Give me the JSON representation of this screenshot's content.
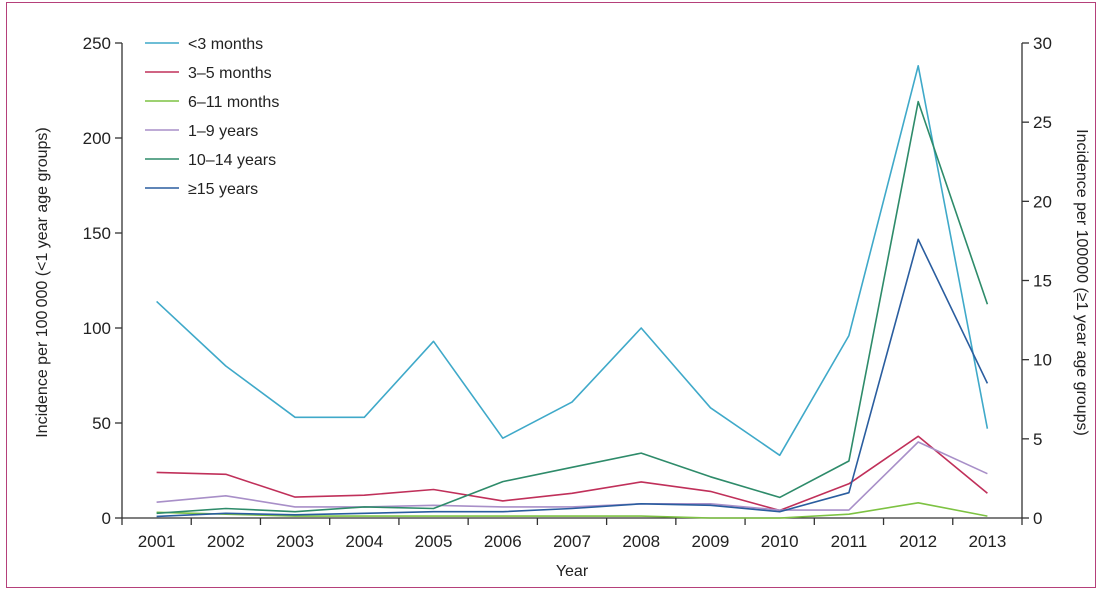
{
  "chart_data": {
    "type": "line",
    "title": "",
    "xlabel": "Year",
    "ylabel_left": "Incidence per 100 000 (<1 year age groups)",
    "ylabel_right": "Incidence per 100000 (≥1 year age groups)",
    "x": [
      "2001",
      "2002",
      "2003",
      "2004",
      "2005",
      "2006",
      "2007",
      "2008",
      "2009",
      "2010",
      "2011",
      "2012",
      "2013"
    ],
    "ylim_left": [
      0,
      250
    ],
    "ylim_right": [
      0,
      30
    ],
    "yticks_left": [
      "0",
      "50",
      "100",
      "150",
      "200",
      "250"
    ],
    "yticks_right": [
      "0",
      "5",
      "10",
      "15",
      "20",
      "25",
      "30"
    ],
    "grid": false,
    "legend_position": "top-left",
    "series": [
      {
        "name": "<3 months",
        "axis": "left",
        "color": "#3fa9c9",
        "values": [
          114,
          80,
          53,
          53,
          93,
          42,
          61,
          100,
          58,
          33,
          96,
          238,
          47
        ]
      },
      {
        "name": "3–5 months",
        "axis": "left",
        "color": "#c0305a",
        "values": [
          24,
          23,
          11,
          12,
          15,
          9,
          13,
          19,
          14,
          4,
          18,
          43,
          13
        ]
      },
      {
        "name": "6–11 months",
        "axis": "left",
        "color": "#7dc242",
        "values": [
          3,
          2,
          1,
          1,
          1,
          1,
          1,
          1,
          0,
          0,
          2,
          8,
          1
        ]
      },
      {
        "name": "1–9 years",
        "axis": "right",
        "color": "#a88fc8",
        "values": [
          1.0,
          1.4,
          0.7,
          0.7,
          0.8,
          0.7,
          0.7,
          0.9,
          0.9,
          0.5,
          0.5,
          4.8,
          2.8
        ]
      },
      {
        "name": "10–14 years",
        "axis": "right",
        "color": "#2e8b6a",
        "values": [
          0.3,
          0.6,
          0.4,
          0.7,
          0.6,
          2.3,
          3.2,
          4.1,
          2.6,
          1.3,
          3.6,
          26.3,
          13.5
        ]
      },
      {
        "name": "≥15 years",
        "axis": "right",
        "color": "#2a5d9f",
        "values": [
          0.1,
          0.3,
          0.2,
          0.3,
          0.4,
          0.4,
          0.6,
          0.9,
          0.8,
          0.4,
          1.6,
          17.6,
          8.5
        ]
      }
    ]
  }
}
